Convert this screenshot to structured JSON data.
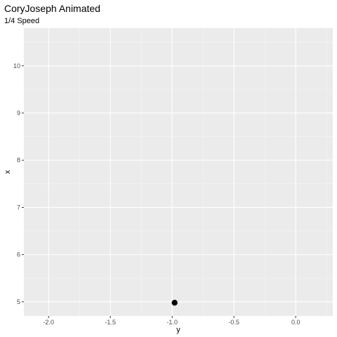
{
  "chart_data": {
    "type": "scatter",
    "title": "CoryJoseph Animated",
    "subtitle": "1/4 Speed",
    "xlabel": "y",
    "ylabel": "x",
    "xlim": [
      -2.2,
      0.3
    ],
    "ylim": [
      4.7,
      10.8
    ],
    "xticks": [
      -2.0,
      -1.5,
      -1.0,
      -0.5,
      0.0
    ],
    "xtick_labels": [
      "-2.0",
      "-1.5",
      "-1.0",
      "-0.5",
      "0.0"
    ],
    "yticks": [
      5,
      6,
      7,
      8,
      9,
      10
    ],
    "ytick_labels": [
      "5",
      "6",
      "7",
      "8",
      "9",
      "10"
    ],
    "grid": true,
    "points": [
      {
        "x": -0.98,
        "y": 4.98
      }
    ],
    "colors": {
      "panel": "#ebebeb",
      "grid_major": "#ffffff",
      "grid_minor": "#f5f5f5",
      "point": "#000000",
      "tick": "#333333"
    }
  }
}
